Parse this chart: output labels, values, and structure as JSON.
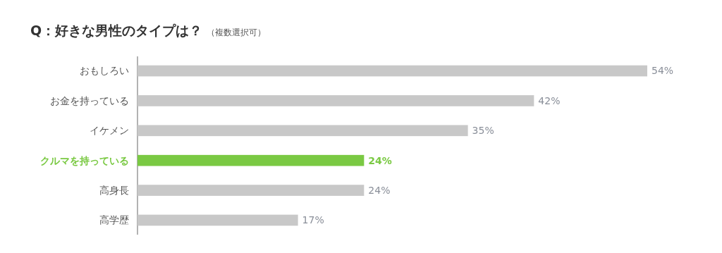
{
  "chart_data": {
    "type": "bar",
    "orientation": "horizontal",
    "title": "Q：好きな男性のタイプは？",
    "subtitle": "（複数選択可）",
    "categories": [
      "おもしろい",
      "お金を持っている",
      "イケメン",
      "クルマを持っている",
      "高身長",
      "高学歴"
    ],
    "values": [
      54,
      42,
      35,
      24,
      24,
      17
    ],
    "colors": [
      "#c8c8c8",
      "#c8c8c8",
      "#c8c8c8",
      "#7ac943",
      "#c8c8c8",
      "#c8c8c8"
    ],
    "value_labels": [
      "54%",
      "42%",
      "35%",
      "24%",
      "24%",
      "17%"
    ]
  }
}
